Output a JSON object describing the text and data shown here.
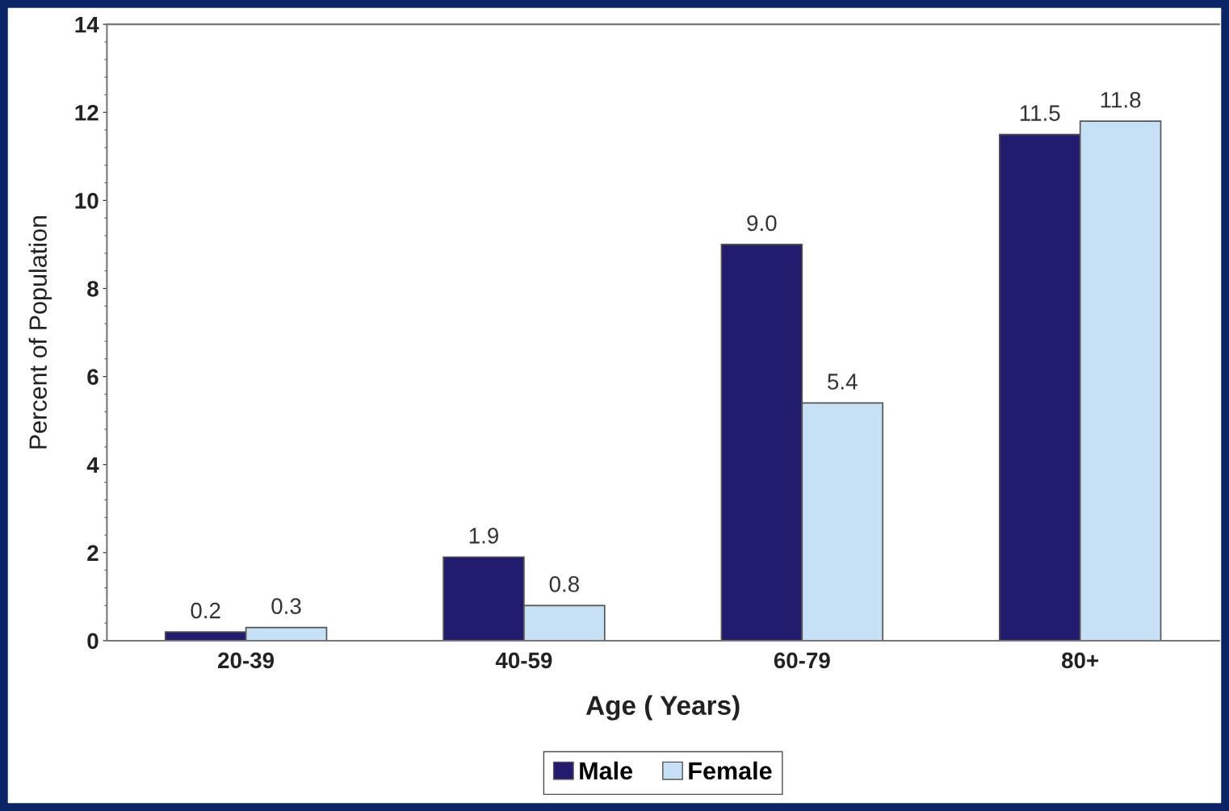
{
  "chart_data": {
    "type": "bar",
    "xlabel": "Age ( Years)",
    "ylabel": "Percent of Population",
    "categories": [
      "20-39",
      "40-59",
      "60-79",
      "80+"
    ],
    "series": [
      {
        "name": "Male",
        "color": "#211c6e",
        "values": [
          0.2,
          1.9,
          9.0,
          11.5
        ],
        "value_labels": [
          "0.2",
          "1.9",
          "9.0",
          "11.5"
        ]
      },
      {
        "name": "Female",
        "color": "#c6e0f6",
        "values": [
          0.3,
          0.8,
          5.4,
          11.8
        ],
        "value_labels": [
          "0.3",
          "0.8",
          "5.4",
          "11.8"
        ]
      }
    ],
    "ylim": [
      0,
      14
    ],
    "yticks": [
      0,
      2,
      4,
      6,
      8,
      10,
      12,
      14
    ],
    "grid": false,
    "legend": "bottom"
  }
}
